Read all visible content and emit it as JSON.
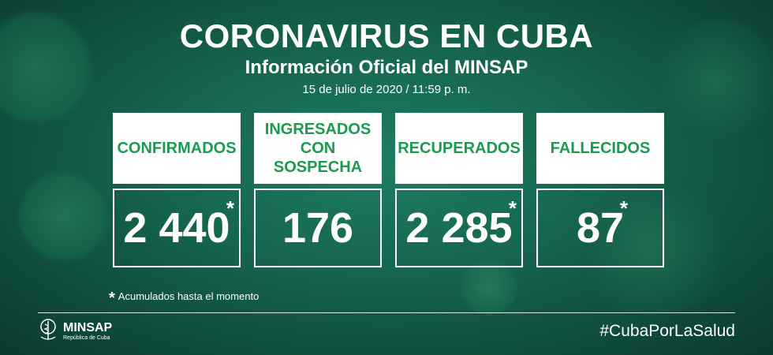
{
  "header": {
    "title": "CORONAVIRUS EN CUBA",
    "subtitle": "Información Oficial del MINSAP",
    "date": "15 de julio de 2020 / 11:59 p. m."
  },
  "cards": [
    {
      "label_line1": "CONFIRMADOS",
      "label_line2": "",
      "value": "2 440",
      "star": "*"
    },
    {
      "label_line1": "INGRESADOS",
      "label_line2": "CON SOSPECHA",
      "value": "176",
      "star": ""
    },
    {
      "label_line1": "RECUPERADOS",
      "label_line2": "",
      "value": "2 285",
      "star": "*"
    },
    {
      "label_line1": "FALLECIDOS",
      "label_line2": "",
      "value": "87",
      "star": "*"
    }
  ],
  "note": {
    "star": "*",
    "text": "Acumulados hasta el momento"
  },
  "footer": {
    "logo_name": "MINSAP",
    "logo_sub": "República de Cuba",
    "hashtag": "#CubaPorLaSalud"
  },
  "colors": {
    "label_green": "#1d9a52",
    "background": "#16664f"
  }
}
